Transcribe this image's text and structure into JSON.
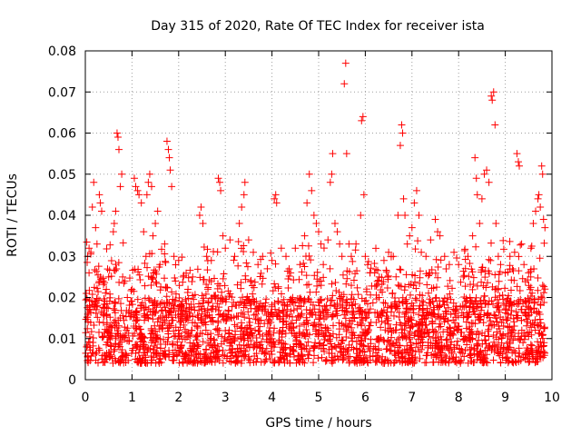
{
  "chart_data": {
    "type": "scatter",
    "title": "Day 315 of 2020, Rate Of TEC Index for receiver ista",
    "xlabel": "GPS time / hours",
    "ylabel": "ROTI / TECUs",
    "xlim": [
      0,
      10
    ],
    "ylim": [
      0,
      0.08
    ],
    "x_ticks": [
      0,
      1,
      2,
      3,
      4,
      5,
      6,
      7,
      8,
      9,
      10
    ],
    "x_tick_labels": [
      "0",
      "1",
      "2",
      "3",
      "4",
      "5",
      "6",
      "7",
      "8",
      "9",
      "10"
    ],
    "y_ticks": [
      0,
      0.01,
      0.02,
      0.03,
      0.04,
      0.05,
      0.06,
      0.07,
      0.08
    ],
    "y_tick_labels": [
      "0",
      "0.01",
      "0.02",
      "0.03",
      "0.04",
      "0.05",
      "0.06",
      "0.07",
      "0.08"
    ],
    "grid": true,
    "marker": "+",
    "series": [
      {
        "name": "ROTI",
        "color": "#ff0000",
        "points": [
          [
            0.02,
            0.021
          ],
          [
            0.05,
            0.03
          ],
          [
            0.08,
            0.032
          ],
          [
            0.12,
            0.031
          ],
          [
            0.15,
            0.042
          ],
          [
            0.18,
            0.048
          ],
          [
            0.22,
            0.037
          ],
          [
            0.25,
            0.033
          ],
          [
            0.3,
            0.045
          ],
          [
            0.32,
            0.043
          ],
          [
            0.35,
            0.041
          ],
          [
            0.38,
            0.024
          ],
          [
            0.45,
            0.022
          ],
          [
            0.5,
            0.025
          ],
          [
            0.6,
            0.036
          ],
          [
            0.62,
            0.038
          ],
          [
            0.65,
            0.041
          ],
          [
            0.68,
            0.06
          ],
          [
            0.7,
            0.059
          ],
          [
            0.72,
            0.056
          ],
          [
            0.75,
            0.047
          ],
          [
            0.78,
            0.05
          ],
          [
            0.8,
            0.025
          ],
          [
            0.85,
            0.024
          ],
          [
            0.9,
            0.02
          ],
          [
            1.0,
            0.022
          ],
          [
            1.05,
            0.049
          ],
          [
            1.08,
            0.047
          ],
          [
            1.12,
            0.046
          ],
          [
            1.15,
            0.045
          ],
          [
            1.2,
            0.043
          ],
          [
            1.25,
            0.036
          ],
          [
            1.3,
            0.03
          ],
          [
            1.32,
            0.045
          ],
          [
            1.35,
            0.048
          ],
          [
            1.38,
            0.05
          ],
          [
            1.42,
            0.047
          ],
          [
            1.45,
            0.035
          ],
          [
            1.5,
            0.038
          ],
          [
            1.55,
            0.041
          ],
          [
            1.6,
            0.028
          ],
          [
            1.7,
            0.033
          ],
          [
            1.75,
            0.058
          ],
          [
            1.78,
            0.056
          ],
          [
            1.8,
            0.054
          ],
          [
            1.82,
            0.051
          ],
          [
            1.85,
            0.047
          ],
          [
            1.9,
            0.03
          ],
          [
            2.0,
            0.029
          ],
          [
            2.1,
            0.025
          ],
          [
            2.2,
            0.022
          ],
          [
            2.3,
            0.025
          ],
          [
            2.45,
            0.04
          ],
          [
            2.48,
            0.042
          ],
          [
            2.52,
            0.038
          ],
          [
            2.6,
            0.03
          ],
          [
            2.7,
            0.029
          ],
          [
            2.85,
            0.049
          ],
          [
            2.88,
            0.048
          ],
          [
            2.9,
            0.046
          ],
          [
            2.95,
            0.035
          ],
          [
            3.0,
            0.032
          ],
          [
            3.1,
            0.034
          ],
          [
            3.2,
            0.03
          ],
          [
            3.3,
            0.038
          ],
          [
            3.35,
            0.042
          ],
          [
            3.4,
            0.045
          ],
          [
            3.42,
            0.048
          ],
          [
            3.5,
            0.034
          ],
          [
            3.6,
            0.031
          ],
          [
            3.7,
            0.028
          ],
          [
            3.8,
            0.03
          ],
          [
            3.9,
            0.027
          ],
          [
            4.0,
            0.029
          ],
          [
            4.05,
            0.044
          ],
          [
            4.08,
            0.045
          ],
          [
            4.1,
            0.043
          ],
          [
            4.2,
            0.032
          ],
          [
            4.3,
            0.03
          ],
          [
            4.4,
            0.026
          ],
          [
            4.5,
            0.032
          ],
          [
            4.6,
            0.028
          ],
          [
            4.7,
            0.035
          ],
          [
            4.75,
            0.043
          ],
          [
            4.8,
            0.05
          ],
          [
            4.85,
            0.046
          ],
          [
            4.9,
            0.04
          ],
          [
            4.95,
            0.038
          ],
          [
            5.0,
            0.036
          ],
          [
            5.05,
            0.033
          ],
          [
            5.1,
            0.028
          ],
          [
            5.2,
            0.034
          ],
          [
            5.25,
            0.048
          ],
          [
            5.28,
            0.05
          ],
          [
            5.3,
            0.055
          ],
          [
            5.35,
            0.038
          ],
          [
            5.4,
            0.036
          ],
          [
            5.45,
            0.033
          ],
          [
            5.5,
            0.03
          ],
          [
            5.55,
            0.072
          ],
          [
            5.58,
            0.077
          ],
          [
            5.6,
            0.055
          ],
          [
            5.65,
            0.033
          ],
          [
            5.7,
            0.03
          ],
          [
            5.8,
            0.033
          ],
          [
            5.9,
            0.04
          ],
          [
            5.92,
            0.063
          ],
          [
            5.95,
            0.064
          ],
          [
            5.97,
            0.045
          ],
          [
            6.0,
            0.03
          ],
          [
            6.05,
            0.028
          ],
          [
            6.1,
            0.026
          ],
          [
            6.2,
            0.026
          ],
          [
            6.3,
            0.025
          ],
          [
            6.4,
            0.029
          ],
          [
            6.5,
            0.031
          ],
          [
            6.6,
            0.03
          ],
          [
            6.7,
            0.04
          ],
          [
            6.75,
            0.057
          ],
          [
            6.78,
            0.062
          ],
          [
            6.8,
            0.06
          ],
          [
            6.82,
            0.044
          ],
          [
            6.85,
            0.04
          ],
          [
            6.9,
            0.033
          ],
          [
            6.95,
            0.035
          ],
          [
            7.0,
            0.037
          ],
          [
            7.05,
            0.043
          ],
          [
            7.1,
            0.046
          ],
          [
            7.15,
            0.04
          ],
          [
            7.2,
            0.031
          ],
          [
            7.3,
            0.03
          ],
          [
            7.4,
            0.034
          ],
          [
            7.5,
            0.039
          ],
          [
            7.55,
            0.036
          ],
          [
            7.6,
            0.035
          ],
          [
            7.7,
            0.03
          ],
          [
            7.8,
            0.028
          ],
          [
            7.9,
            0.031
          ],
          [
            8.0,
            0.028
          ],
          [
            8.1,
            0.025
          ],
          [
            8.2,
            0.03
          ],
          [
            8.3,
            0.035
          ],
          [
            8.35,
            0.054
          ],
          [
            8.38,
            0.049
          ],
          [
            8.4,
            0.045
          ],
          [
            8.45,
            0.038
          ],
          [
            8.5,
            0.044
          ],
          [
            8.55,
            0.05
          ],
          [
            8.6,
            0.051
          ],
          [
            8.65,
            0.048
          ],
          [
            8.7,
            0.069
          ],
          [
            8.72,
            0.068
          ],
          [
            8.75,
            0.07
          ],
          [
            8.78,
            0.062
          ],
          [
            8.8,
            0.038
          ],
          [
            8.85,
            0.03
          ],
          [
            8.9,
            0.028
          ],
          [
            9.0,
            0.026
          ],
          [
            9.1,
            0.03
          ],
          [
            9.2,
            0.031
          ],
          [
            9.25,
            0.055
          ],
          [
            9.28,
            0.053
          ],
          [
            9.3,
            0.052
          ],
          [
            9.35,
            0.033
          ],
          [
            9.4,
            0.028
          ],
          [
            9.5,
            0.026
          ],
          [
            9.55,
            0.032
          ],
          [
            9.6,
            0.038
          ],
          [
            9.65,
            0.041
          ],
          [
            9.7,
            0.044
          ],
          [
            9.72,
            0.045
          ],
          [
            9.75,
            0.042
          ],
          [
            9.78,
            0.052
          ],
          [
            9.8,
            0.05
          ],
          [
            9.82,
            0.039
          ],
          [
            9.85,
            0.037
          ]
        ]
      }
    ],
    "bulk_band": {
      "note": "dense cloud of '+' markers concentrated roughly between these ROTI levels across the full time range",
      "min": 0.004,
      "max": 0.02
    }
  }
}
